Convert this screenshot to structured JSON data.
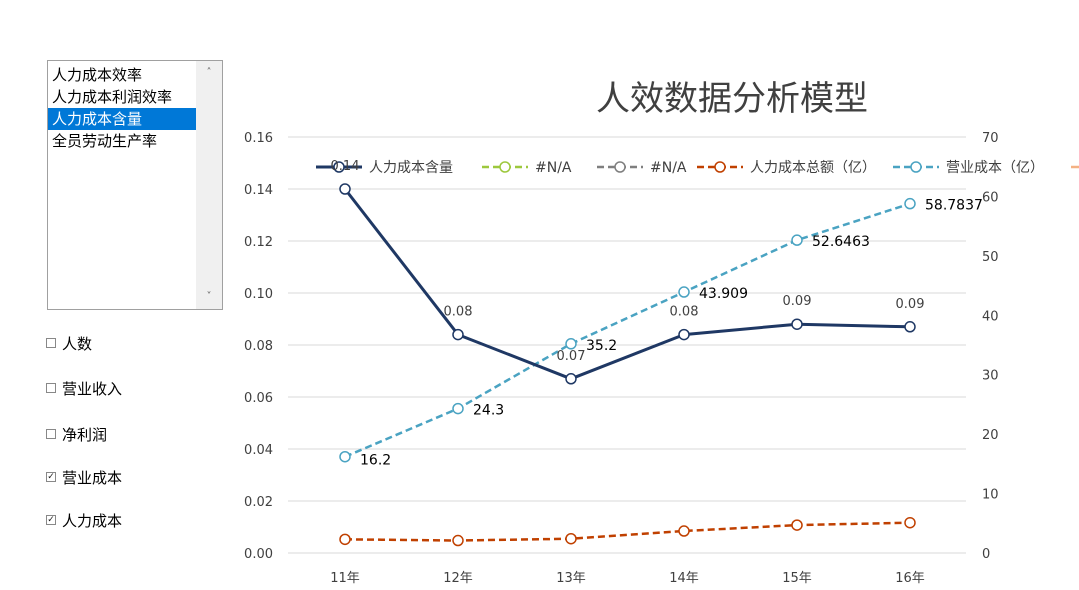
{
  "listbox": {
    "items": [
      "人力成本效率",
      "人力成本利润效率",
      "人力成本含量",
      "全员劳动生产率"
    ],
    "selected_index": 2
  },
  "checkboxes": [
    {
      "label": "人数",
      "checked": false
    },
    {
      "label": "营业收入",
      "checked": false
    },
    {
      "label": "净利润",
      "checked": false
    },
    {
      "label": "营业成本",
      "checked": true
    },
    {
      "label": "人力成本",
      "checked": true
    }
  ],
  "chart_data": {
    "type": "line",
    "title": "人效数据分析模型",
    "categories": [
      "11年",
      "12年",
      "13年",
      "14年",
      "15年",
      "16年"
    ],
    "y_left": {
      "min": 0,
      "max": 0.16,
      "ticks": [
        "0.00",
        "0.02",
        "0.04",
        "0.06",
        "0.08",
        "0.10",
        "0.12",
        "0.14",
        "0.16"
      ]
    },
    "y_right": {
      "min": 0,
      "max": 70,
      "ticks": [
        "0",
        "10",
        "20",
        "30",
        "40",
        "50",
        "60",
        "70"
      ]
    },
    "legend": [
      "人力成本含量",
      "#N/A",
      "#N/A",
      "人力成本总额（亿）",
      "营业成本（亿）"
    ],
    "colors": {
      "labor_cost_content": "#1f3864",
      "na1": "#9dc83d",
      "na2": "#7f7f7f",
      "labor_cost_total": "#c04000",
      "operating_cost": "#4aa3c2",
      "cut": "#f4b183"
    },
    "series": [
      {
        "name": "人力成本含量",
        "axis": "left",
        "style": "solid",
        "values": [
          0.14,
          0.084,
          0.067,
          0.084,
          0.088,
          0.087
        ],
        "labels": [
          "0.14",
          "0.08",
          "0.07",
          "0.08",
          "0.09",
          "0.09"
        ]
      },
      {
        "name": "人力成本总额（亿）",
        "axis": "right",
        "style": "dashed",
        "values": [
          2.3,
          2.1,
          2.4,
          3.7,
          4.7,
          5.1
        ],
        "labels": []
      },
      {
        "name": "营业成本（亿）",
        "axis": "right",
        "style": "dashed",
        "values": [
          16.2,
          24.3,
          35.2,
          43.909,
          52.6463,
          58.7837
        ],
        "labels": [
          "16.2",
          "24.3",
          "35.2",
          "43.909",
          "52.6463",
          "58.7837"
        ]
      }
    ]
  }
}
